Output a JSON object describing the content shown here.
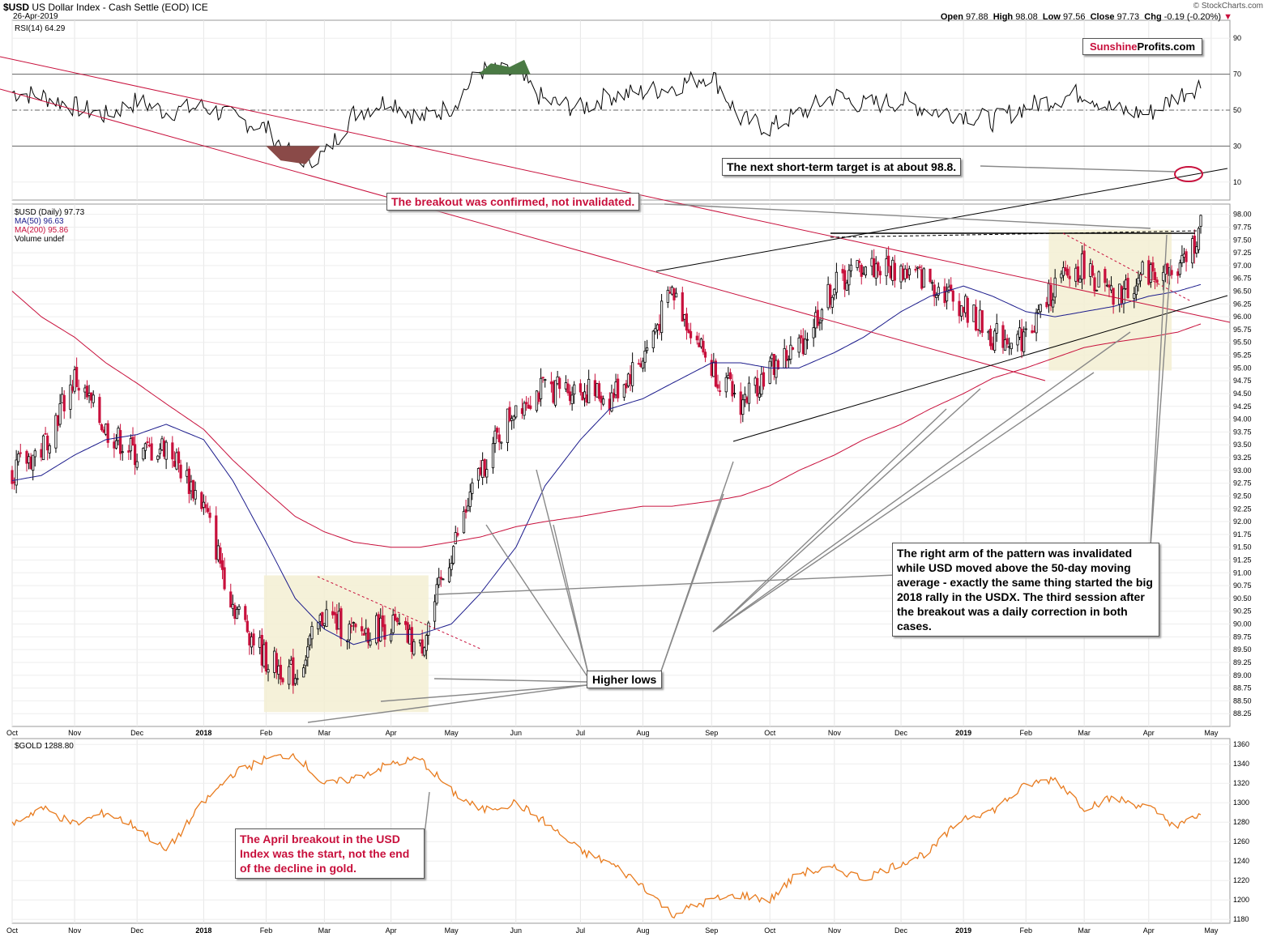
{
  "header": {
    "symbol": "$USD",
    "name": "US Dollar Index - Cash Settle (EOD)",
    "exchange": "ICE",
    "date": "26-Apr-2019",
    "copyright": "© StockCharts.com",
    "ohlc": {
      "open_label": "Open",
      "open": "97.88",
      "high_label": "High",
      "high": "98.08",
      "low_label": "Low",
      "low": "97.56",
      "close_label": "Close",
      "close": "97.73",
      "chg_label": "Chg",
      "chg": "-0.19 (-0.20%)"
    }
  },
  "watermark": {
    "part1": "Sunshine",
    "part2": "Profits.com"
  },
  "legend": {
    "rsi": "RSI(14) 64.29",
    "usd": "$USD (Daily) 97.73",
    "ma50": "MA(50) 96.63",
    "ma200": "MA(200) 95.86",
    "volume": "Volume undef",
    "gold": "$GOLD 1288.80"
  },
  "annotations": {
    "target": "The next short-term target is at about 98.8.",
    "breakout": "The breakout was confirmed, not invalidated.",
    "right_arm": "The right arm of the pattern was invalidated while USD moved above the 50-day moving average - exactly the same thing started the big 2018 rally in the USDX. The third session after the breakout was a daily correction in both cases.",
    "higher_lows": "Higher lows",
    "april_breakout": "The April breakout in the USD Index was the start, not the end of the decline in gold."
  },
  "colors": {
    "up_candle": "#000000",
    "down_candle": "#c8103c",
    "ma50": "#1c1c8c",
    "ma200": "#c8103c",
    "gold": "#e87b1e",
    "note_red": "#c8103c",
    "box_fill": "#f3efd2",
    "rsi_overbought_fill": "#4a7a44",
    "rsi_oversold_fill": "#8a4a48"
  },
  "chart_data": [
    {
      "type": "line",
      "title": "RSI(14) 64.29",
      "ylim": [
        0,
        100
      ],
      "y_ticks": [
        10,
        30,
        50,
        70,
        90
      ],
      "reference_lines": [
        30,
        50,
        70
      ],
      "x": [
        "2017-10-02",
        "2017-10-16",
        "2017-11-01",
        "2017-11-16",
        "2017-12-01",
        "2017-12-15",
        "2018-01-02",
        "2018-01-16",
        "2018-02-01",
        "2018-02-15",
        "2018-03-01",
        "2018-03-15",
        "2018-04-02",
        "2018-04-16",
        "2018-05-01",
        "2018-05-15",
        "2018-06-01",
        "2018-06-15",
        "2018-07-02",
        "2018-07-16",
        "2018-08-01",
        "2018-08-15",
        "2018-09-03",
        "2018-09-17",
        "2018-10-01",
        "2018-10-15",
        "2018-11-01",
        "2018-11-15",
        "2018-12-03",
        "2018-12-17",
        "2019-01-02",
        "2019-01-16",
        "2019-02-01",
        "2019-02-15",
        "2019-03-01",
        "2019-03-15",
        "2019-04-01",
        "2019-04-15",
        "2019-04-26"
      ],
      "series": [
        {
          "values": [
            60,
            58,
            52,
            47,
            55,
            49,
            52,
            46,
            40,
            22,
            25,
            48,
            56,
            45,
            52,
            72,
            70,
            55,
            51,
            58,
            60,
            63,
            70,
            45,
            40,
            48,
            58,
            53,
            55,
            50,
            48,
            44,
            52,
            56,
            60,
            50,
            48,
            58,
            64.29
          ]
        }
      ]
    },
    {
      "type": "line",
      "title": "$USD (Daily) 97.73",
      "ylim": [
        88.0,
        98.2
      ],
      "y_ticks": [
        88.25,
        88.5,
        88.75,
        89.0,
        89.25,
        89.5,
        89.75,
        90.0,
        90.25,
        90.5,
        90.75,
        91.0,
        91.25,
        91.5,
        91.75,
        92.0,
        92.25,
        92.5,
        92.75,
        93.0,
        93.25,
        93.5,
        93.75,
        94.0,
        94.25,
        94.5,
        94.75,
        95.0,
        95.25,
        95.5,
        95.75,
        96.0,
        96.25,
        96.5,
        96.75,
        97.0,
        97.25,
        97.5,
        97.75,
        98.0
      ],
      "x_labels": [
        "Oct",
        "Nov",
        "Dec",
        "2018",
        "Feb",
        "Mar",
        "Apr",
        "May",
        "Jun",
        "Jul",
        "Aug",
        "Sep",
        "Oct",
        "Nov",
        "Dec",
        "2019",
        "Feb",
        "Mar",
        "Apr",
        "May"
      ],
      "x": [
        "2017-10-02",
        "2017-10-16",
        "2017-11-01",
        "2017-11-16",
        "2017-12-01",
        "2017-12-15",
        "2018-01-02",
        "2018-01-16",
        "2018-02-01",
        "2018-02-15",
        "2018-03-01",
        "2018-03-15",
        "2018-04-02",
        "2018-04-16",
        "2018-05-01",
        "2018-05-15",
        "2018-06-01",
        "2018-06-15",
        "2018-07-02",
        "2018-07-16",
        "2018-08-01",
        "2018-08-15",
        "2018-09-03",
        "2018-09-17",
        "2018-10-01",
        "2018-10-15",
        "2018-11-01",
        "2018-11-15",
        "2018-12-03",
        "2018-12-17",
        "2019-01-02",
        "2019-01-16",
        "2019-02-01",
        "2019-02-15",
        "2019-03-01",
        "2019-03-15",
        "2019-04-01",
        "2019-04-15",
        "2019-04-26"
      ],
      "series": [
        {
          "name": "$USD",
          "values": [
            93.0,
            93.4,
            94.8,
            93.8,
            93.3,
            93.5,
            92.3,
            90.4,
            89.3,
            89.0,
            90.2,
            89.8,
            90.0,
            89.5,
            91.4,
            93.0,
            94.3,
            94.6,
            94.6,
            94.4,
            95.2,
            96.5,
            95.0,
            94.3,
            95.0,
            95.4,
            96.6,
            97.0,
            96.9,
            96.7,
            96.2,
            95.6,
            95.6,
            96.6,
            97.0,
            96.3,
            96.9,
            96.8,
            97.73
          ]
        },
        {
          "name": "MA(50)",
          "values": [
            92.8,
            92.9,
            93.3,
            93.6,
            93.7,
            93.9,
            93.6,
            92.8,
            91.6,
            90.5,
            89.9,
            89.6,
            89.8,
            89.8,
            90.0,
            90.6,
            91.5,
            92.7,
            93.6,
            94.2,
            94.4,
            94.7,
            95.1,
            95.1,
            95.0,
            95.0,
            95.3,
            95.6,
            96.1,
            96.4,
            96.6,
            96.4,
            96.1,
            96.0,
            96.1,
            96.2,
            96.4,
            96.5,
            96.63
          ]
        },
        {
          "name": "MA(200)",
          "values": [
            96.5,
            96.0,
            95.6,
            95.1,
            94.7,
            94.3,
            93.8,
            93.2,
            92.6,
            92.1,
            91.8,
            91.6,
            91.5,
            91.5,
            91.6,
            91.7,
            91.9,
            92.0,
            92.1,
            92.2,
            92.3,
            92.3,
            92.4,
            92.5,
            92.7,
            93.0,
            93.3,
            93.6,
            93.9,
            94.2,
            94.5,
            94.8,
            95.0,
            95.2,
            95.4,
            95.5,
            95.6,
            95.7,
            95.86
          ]
        }
      ]
    },
    {
      "type": "line",
      "title": "$GOLD 1288.80",
      "ylim": [
        1176,
        1366
      ],
      "y_ticks": [
        1180,
        1200,
        1220,
        1240,
        1260,
        1280,
        1300,
        1320,
        1340,
        1360
      ],
      "x_labels": [
        "Oct",
        "Nov",
        "Dec",
        "2018",
        "Feb",
        "Mar",
        "Apr",
        "May",
        "Jun",
        "Jul",
        "Aug",
        "Sep",
        "Oct",
        "Nov",
        "Dec",
        "2019",
        "Feb",
        "Mar",
        "Apr",
        "May"
      ],
      "x": [
        "2017-10-02",
        "2017-10-16",
        "2017-11-01",
        "2017-11-16",
        "2017-12-01",
        "2017-12-15",
        "2018-01-02",
        "2018-01-16",
        "2018-02-01",
        "2018-02-15",
        "2018-03-01",
        "2018-03-15",
        "2018-04-02",
        "2018-04-16",
        "2018-05-01",
        "2018-05-15",
        "2018-06-01",
        "2018-06-15",
        "2018-07-02",
        "2018-07-16",
        "2018-08-01",
        "2018-08-15",
        "2018-09-03",
        "2018-09-17",
        "2018-10-01",
        "2018-10-15",
        "2018-11-01",
        "2018-11-15",
        "2018-12-03",
        "2018-12-17",
        "2019-01-02",
        "2019-01-16",
        "2019-02-01",
        "2019-02-15",
        "2019-03-01",
        "2019-03-15",
        "2019-04-01",
        "2019-04-15",
        "2019-04-26"
      ],
      "series": [
        {
          "name": "$GOLD",
          "values": [
            1278,
            1295,
            1278,
            1290,
            1275,
            1250,
            1300,
            1330,
            1345,
            1350,
            1318,
            1325,
            1340,
            1345,
            1312,
            1292,
            1300,
            1280,
            1250,
            1238,
            1215,
            1185,
            1200,
            1205,
            1200,
            1228,
            1232,
            1222,
            1238,
            1250,
            1285,
            1292,
            1318,
            1325,
            1295,
            1305,
            1295,
            1275,
            1288.8
          ]
        }
      ]
    }
  ]
}
